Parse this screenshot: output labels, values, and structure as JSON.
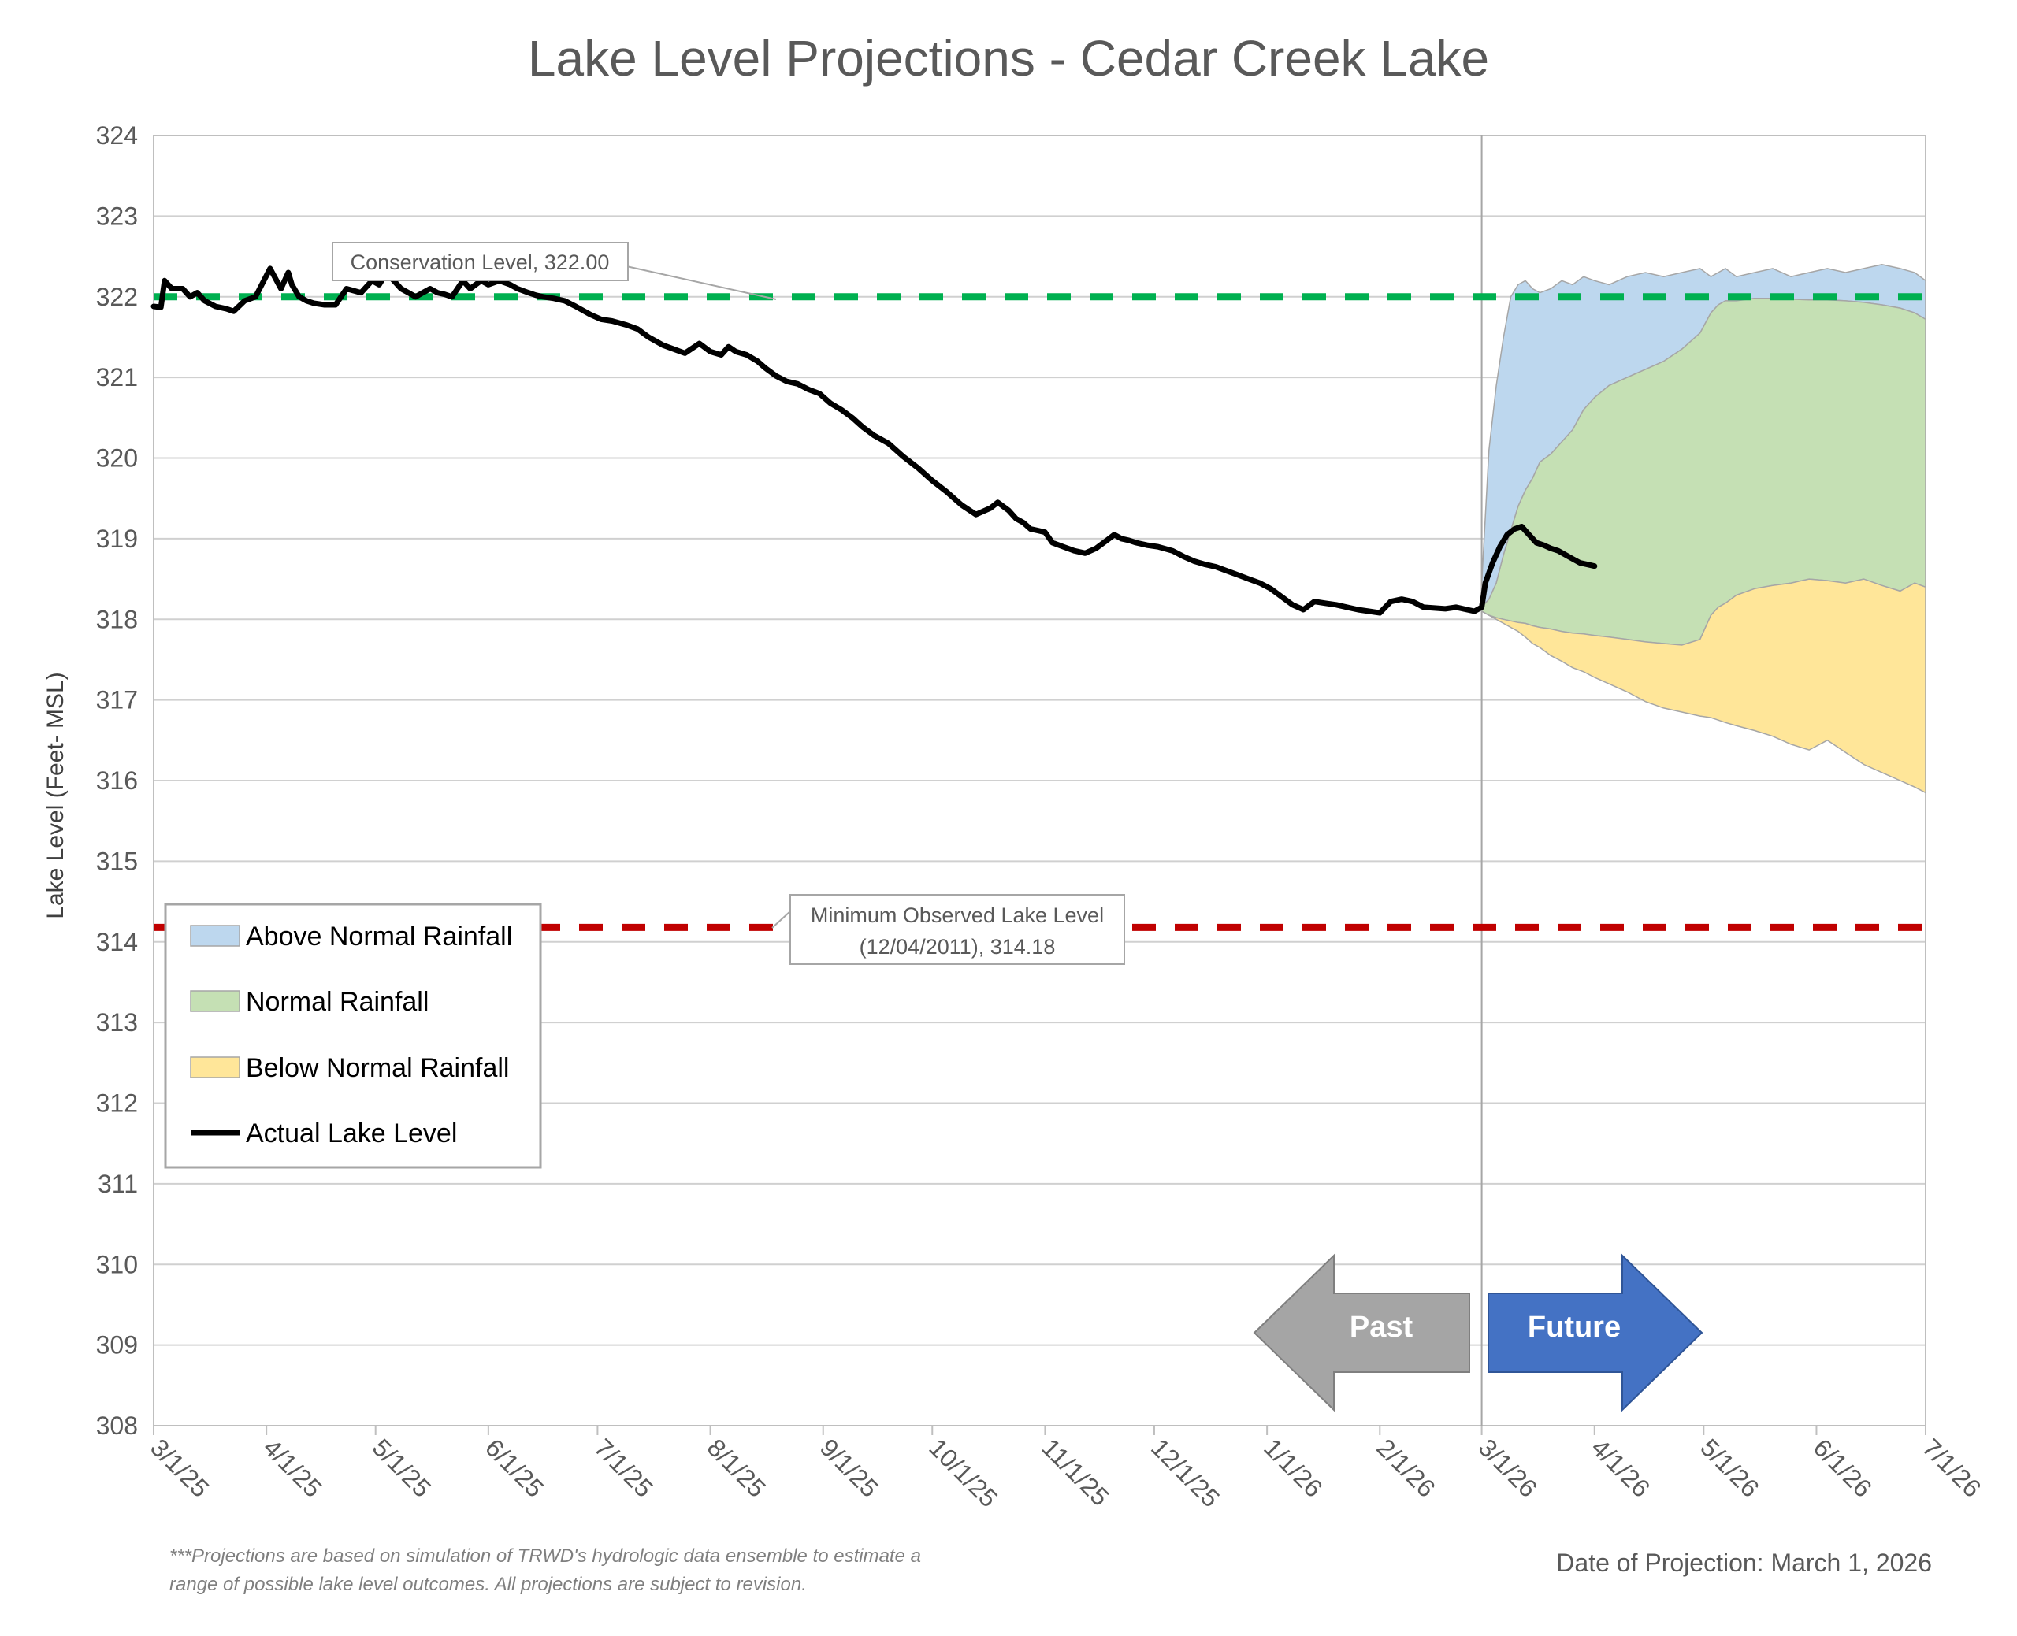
{
  "colors": {
    "above": "#BDD7EE",
    "normal": "#C5E0B4",
    "below": "#FFE699",
    "band_edge": "#A6A6A6",
    "actual": "#000000",
    "conservation": "#00B050",
    "minimum": "#C00000",
    "past_arrow": "#A5A5A5",
    "future_arrow": "#4472C4"
  },
  "chart_data": {
    "type": "area",
    "title": "Lake Level Projections - Cedar Creek Lake",
    "ylabel": "Lake Level (Feet- MSL)",
    "xlabel": "",
    "ylim": [
      308,
      324
    ],
    "yticks": [
      "308",
      "309",
      "310",
      "311",
      "312",
      "313",
      "314",
      "315",
      "316",
      "317",
      "318",
      "319",
      "320",
      "321",
      "322",
      "323",
      "324"
    ],
    "x_range_days": [
      0,
      487
    ],
    "xticks": [
      {
        "label": "3/1/25",
        "day": 0
      },
      {
        "label": "4/1/25",
        "day": 31
      },
      {
        "label": "5/1/25",
        "day": 61
      },
      {
        "label": "6/1/25",
        "day": 92
      },
      {
        "label": "7/1/25",
        "day": 122
      },
      {
        "label": "8/1/25",
        "day": 153
      },
      {
        "label": "9/1/25",
        "day": 184
      },
      {
        "label": "10/1/25",
        "day": 214
      },
      {
        "label": "11/1/25",
        "day": 245
      },
      {
        "label": "12/1/25",
        "day": 275
      },
      {
        "label": "1/1/26",
        "day": 306
      },
      {
        "label": "2/1/26",
        "day": 337
      },
      {
        "label": "3/1/26",
        "day": 365
      },
      {
        "label": "4/1/26",
        "day": 396
      },
      {
        "label": "5/1/26",
        "day": 426
      },
      {
        "label": "6/1/26",
        "day": 457
      },
      {
        "label": "7/1/26",
        "day": 487
      }
    ],
    "grid": true,
    "projection_start_day": 365,
    "reference_lines": [
      {
        "name": "Conservation Level",
        "value": 322.0,
        "label": "Conservation Level, 322.00"
      },
      {
        "name": "Minimum Observed Lake Level",
        "value": 314.18,
        "label_line1": "Minimum Observed Lake Level",
        "label_line2": "(12/04/2011), 314.18"
      }
    ],
    "actual_series": {
      "name": "Actual Lake Level",
      "x": [
        0,
        2,
        3,
        5,
        8,
        10,
        12,
        14,
        17,
        20,
        22,
        25,
        28,
        32,
        35,
        37,
        38,
        40,
        42,
        44,
        47,
        50,
        53,
        57,
        60,
        62,
        64,
        66,
        68,
        70,
        72,
        74,
        76,
        78,
        80,
        82,
        85,
        87,
        90,
        92,
        95,
        98,
        100,
        103,
        105,
        107,
        110,
        113,
        116,
        120,
        123,
        126,
        130,
        133,
        136,
        140,
        143,
        146,
        150,
        153,
        156,
        158,
        160,
        163,
        166,
        168,
        171,
        174,
        177,
        180,
        183,
        186,
        189,
        192,
        195,
        198,
        202,
        206,
        210,
        214,
        218,
        222,
        226,
        230,
        232,
        235,
        237,
        239,
        241,
        243,
        245,
        247,
        250,
        253,
        256,
        259,
        262,
        264,
        266,
        268,
        270,
        273,
        276,
        280,
        283,
        286,
        289,
        292,
        295,
        298,
        301,
        304,
        307,
        310,
        313,
        316,
        319,
        322,
        325,
        328,
        331,
        334,
        337,
        340,
        343,
        346,
        349,
        352,
        355,
        358,
        361,
        363,
        365,
        366,
        368,
        370,
        372,
        374,
        376,
        378,
        380,
        382,
        384,
        386,
        388,
        390,
        392,
        394,
        396
      ],
      "y": [
        321.88,
        321.87,
        322.2,
        322.1,
        322.1,
        322.0,
        322.05,
        321.95,
        321.88,
        321.85,
        321.82,
        321.95,
        322.0,
        322.35,
        322.1,
        322.3,
        322.15,
        322.0,
        321.95,
        321.92,
        321.9,
        321.9,
        322.1,
        322.05,
        322.2,
        322.15,
        322.3,
        322.2,
        322.1,
        322.05,
        322.0,
        322.05,
        322.1,
        322.05,
        322.03,
        322.0,
        322.2,
        322.1,
        322.2,
        322.15,
        322.2,
        322.15,
        322.1,
        322.05,
        322.02,
        322.0,
        321.98,
        321.95,
        321.88,
        321.78,
        321.72,
        321.7,
        321.65,
        321.6,
        321.5,
        321.4,
        321.35,
        321.3,
        321.42,
        321.32,
        321.28,
        321.38,
        321.32,
        321.28,
        321.2,
        321.12,
        321.02,
        320.95,
        320.92,
        320.85,
        320.8,
        320.68,
        320.6,
        320.5,
        320.38,
        320.28,
        320.18,
        320.02,
        319.88,
        319.72,
        319.58,
        319.42,
        319.3,
        319.38,
        319.45,
        319.35,
        319.25,
        319.2,
        319.12,
        319.1,
        319.08,
        318.95,
        318.9,
        318.85,
        318.82,
        318.88,
        318.98,
        319.05,
        319.0,
        318.98,
        318.95,
        318.92,
        318.9,
        318.85,
        318.78,
        318.72,
        318.68,
        318.65,
        318.6,
        318.55,
        318.5,
        318.45,
        318.38,
        318.28,
        318.18,
        318.12,
        318.22,
        318.2,
        318.18,
        318.15,
        318.12,
        318.1,
        318.08,
        318.22,
        318.25,
        318.22,
        318.15,
        318.14,
        318.13,
        318.15,
        318.12,
        318.1,
        318.15,
        318.45,
        318.7,
        318.9,
        319.05,
        319.12,
        319.15,
        319.05,
        318.95,
        318.92,
        318.88,
        318.85,
        318.8,
        318.75,
        318.7,
        318.68,
        318.66
      ]
    },
    "projection_days": [
      365,
      367,
      369,
      371,
      373,
      375,
      377,
      379,
      381,
      384,
      387,
      390,
      393,
      396,
      400,
      405,
      410,
      415,
      420,
      425,
      428,
      430,
      432,
      435,
      440,
      445,
      450,
      455,
      460,
      465,
      470,
      475,
      480,
      484,
      487
    ],
    "bands": [
      {
        "name": "Above Normal Rainfall",
        "top": [
          318.45,
          320.1,
          320.9,
          321.5,
          322.0,
          322.15,
          322.2,
          322.1,
          322.05,
          322.1,
          322.2,
          322.15,
          322.25,
          322.2,
          322.15,
          322.25,
          322.3,
          322.25,
          322.3,
          322.35,
          322.25,
          322.3,
          322.35,
          322.25,
          322.3,
          322.35,
          322.25,
          322.3,
          322.35,
          322.3,
          322.35,
          322.4,
          322.35,
          322.3,
          322.2
        ]
      },
      {
        "name": "Normal Rainfall",
        "top": [
          318.15,
          318.25,
          318.45,
          318.8,
          319.1,
          319.4,
          319.6,
          319.75,
          319.95,
          320.05,
          320.2,
          320.35,
          320.6,
          320.75,
          320.9,
          321.0,
          321.1,
          321.2,
          321.35,
          321.55,
          321.8,
          321.9,
          321.95,
          321.95,
          321.98,
          321.98,
          321.97,
          321.96,
          321.96,
          321.95,
          321.93,
          321.9,
          321.86,
          321.8,
          321.72
        ]
      },
      {
        "name": "Below Normal Rainfall",
        "top": [
          318.1,
          318.05,
          318.02,
          318.0,
          317.98,
          317.96,
          317.95,
          317.92,
          317.9,
          317.88,
          317.85,
          317.83,
          317.82,
          317.8,
          317.78,
          317.75,
          317.72,
          317.7,
          317.68,
          317.75,
          318.05,
          318.15,
          318.2,
          318.3,
          318.38,
          318.42,
          318.45,
          318.5,
          318.48,
          318.45,
          318.5,
          318.42,
          318.35,
          318.45,
          318.4
        ]
      },
      {
        "name": "Below Normal Rainfall (lower bound)",
        "top": [
          318.1,
          318.05,
          318.0,
          317.95,
          317.9,
          317.85,
          317.78,
          317.7,
          317.65,
          317.55,
          317.48,
          317.4,
          317.35,
          317.28,
          317.2,
          317.1,
          316.98,
          316.9,
          316.85,
          316.8,
          316.78,
          316.75,
          316.72,
          316.68,
          316.62,
          316.55,
          316.45,
          316.38,
          316.5,
          316.35,
          316.2,
          316.1,
          316.0,
          315.92,
          315.85
        ]
      }
    ]
  },
  "legend": {
    "items": [
      {
        "label": "Above Normal Rainfall"
      },
      {
        "label": "Normal Rainfall"
      },
      {
        "label": "Below Normal Rainfall"
      },
      {
        "label": "Actual Lake Level"
      }
    ]
  },
  "arrows": {
    "past": "Past",
    "future": "Future"
  },
  "footnote": {
    "line1": "***Projections are based on simulation of TRWD's hydrologic data ensemble to estimate a",
    "line2": "range of possible lake level outcomes.  All projections are subject to revision."
  },
  "date_of_projection": "Date of Projection: March 1, 2026"
}
